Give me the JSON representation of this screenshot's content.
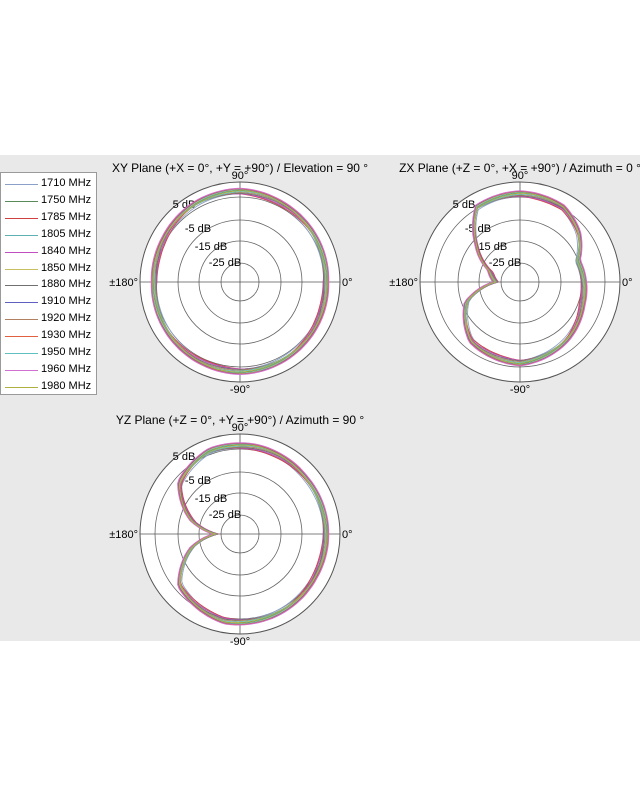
{
  "legend": {
    "entries": [
      {
        "label": "1710 MHz",
        "color": "#8aa0c8"
      },
      {
        "label": "1750 MHz",
        "color": "#5a8a5a"
      },
      {
        "label": "1785 MHz",
        "color": "#d04040"
      },
      {
        "label": "1805 MHz",
        "color": "#5fb0b0"
      },
      {
        "label": "1840 MHz",
        "color": "#c050c0"
      },
      {
        "label": "1850 MHz",
        "color": "#c8c060"
      },
      {
        "label": "1880 MHz",
        "color": "#707070"
      },
      {
        "label": "1910 MHz",
        "color": "#6060c0"
      },
      {
        "label": "1920 MHz",
        "color": "#b08060"
      },
      {
        "label": "1930 MHz",
        "color": "#e06040"
      },
      {
        "label": "1950 MHz",
        "color": "#60c0c0"
      },
      {
        "label": "1960 MHz",
        "color": "#d070d0"
      },
      {
        "label": "1980 MHz",
        "color": "#b0b040"
      }
    ]
  },
  "chart_data": [
    {
      "type": "polar",
      "title": "XY Plane (+X = 0°, +Y = +90°) / Elevation = 90 °",
      "angle_labels": {
        "top": "90°",
        "right": "0°",
        "bottom": "-90°",
        "left": "±180°"
      },
      "ring_labels": [
        "5 dB",
        "-5 dB",
        "-15 dB",
        "-25 dB"
      ],
      "rlim_db": [
        -35,
        5
      ],
      "pattern": [
        {
          "angle": 0,
          "gain_db": 0
        },
        {
          "angle": 30,
          "gain_db": 0.5
        },
        {
          "angle": 60,
          "gain_db": 1
        },
        {
          "angle": 90,
          "gain_db": 2
        },
        {
          "angle": 120,
          "gain_db": 1.5
        },
        {
          "angle": 150,
          "gain_db": 0.5
        },
        {
          "angle": 180,
          "gain_db": 0
        },
        {
          "angle": 210,
          "gain_db": 0.5
        },
        {
          "angle": 240,
          "gain_db": 1
        },
        {
          "angle": 270,
          "gain_db": 1.5
        },
        {
          "angle": 300,
          "gain_db": 1
        },
        {
          "angle": 330,
          "gain_db": 0.5
        }
      ]
    },
    {
      "type": "polar",
      "title": "ZX Plane (+Z = 0°, +X = +90°) / Azimuth = 0 °",
      "angle_labels": {
        "top": "90°",
        "right": "0°",
        "bottom": "-90°",
        "left": "±180°"
      },
      "ring_labels": [
        "5 dB",
        "-5 dB",
        "-15 dB",
        "-25 dB"
      ],
      "rlim_db": [
        -35,
        5
      ],
      "pattern": [
        {
          "angle": 0,
          "gain_db": -9
        },
        {
          "angle": 20,
          "gain_db": -10
        },
        {
          "angle": 40,
          "gain_db": -4
        },
        {
          "angle": 60,
          "gain_db": 0
        },
        {
          "angle": 90,
          "gain_db": 1
        },
        {
          "angle": 120,
          "gain_db": 0
        },
        {
          "angle": 140,
          "gain_db": -12
        },
        {
          "angle": 160,
          "gain_db": -22
        },
        {
          "angle": 180,
          "gain_db": -25
        },
        {
          "angle": 200,
          "gain_db": -12
        },
        {
          "angle": 230,
          "gain_db": -4
        },
        {
          "angle": 270,
          "gain_db": -2
        },
        {
          "angle": 310,
          "gain_db": -5
        },
        {
          "angle": 340,
          "gain_db": -8
        }
      ]
    },
    {
      "type": "polar",
      "title": "YZ Plane (+Z = 0°, +Y = +90°) / Azimuth = 90 °",
      "angle_labels": {
        "top": "90°",
        "right": "0°",
        "bottom": "-90°",
        "left": "±180°"
      },
      "ring_labels": [
        "5 dB",
        "-5 dB",
        "-15 dB",
        "-25 dB"
      ],
      "rlim_db": [
        -35,
        5
      ],
      "pattern": [
        {
          "angle": 0,
          "gain_db": 0
        },
        {
          "angle": 40,
          "gain_db": 0
        },
        {
          "angle": 80,
          "gain_db": 1
        },
        {
          "angle": 110,
          "gain_db": 1
        },
        {
          "angle": 140,
          "gain_db": -3
        },
        {
          "angle": 165,
          "gain_db": -15
        },
        {
          "angle": 180,
          "gain_db": -25
        },
        {
          "angle": 195,
          "gain_db": -15
        },
        {
          "angle": 220,
          "gain_db": -3
        },
        {
          "angle": 260,
          "gain_db": 1
        },
        {
          "angle": 300,
          "gain_db": 0.5
        },
        {
          "angle": 330,
          "gain_db": 0
        }
      ]
    }
  ]
}
